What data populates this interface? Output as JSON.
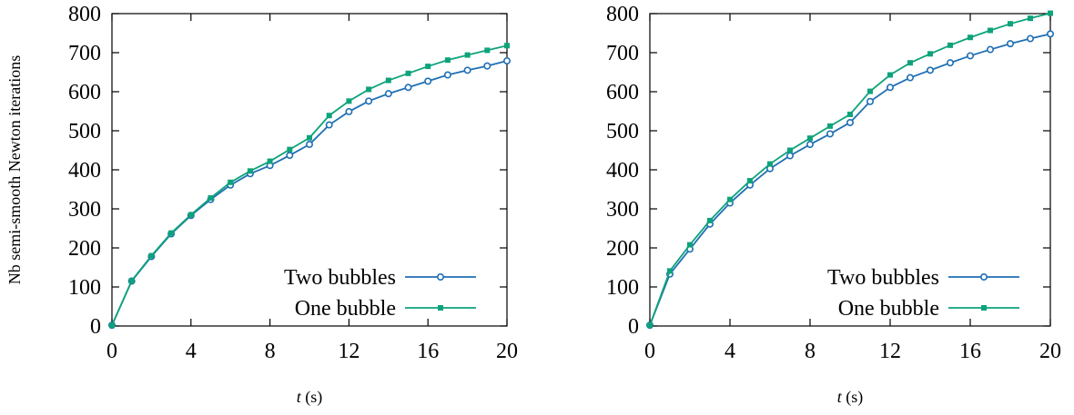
{
  "chart_data": [
    {
      "type": "line",
      "title": "",
      "xlabel": "t (s)",
      "xlabel_italic": "t",
      "xlabel_unit": " (s)",
      "ylabel": "Nb semi-smooth Newton iterations",
      "xlim": [
        0,
        20
      ],
      "ylim": [
        0,
        800
      ],
      "xticks": [
        0,
        4,
        8,
        12,
        16,
        20
      ],
      "yticks": [
        0,
        100,
        200,
        300,
        400,
        500,
        600,
        700,
        800
      ],
      "grid": false,
      "legend_position": "bottom-right",
      "x": [
        0,
        1,
        2,
        3,
        4,
        5,
        6,
        7,
        8,
        9,
        10,
        11,
        12,
        13,
        14,
        15,
        16,
        17,
        18,
        19,
        20
      ],
      "series": [
        {
          "name": "Two bubbles",
          "color": "#1f6fb4",
          "marker": "circle",
          "values": [
            2,
            115,
            178,
            236,
            283,
            324,
            361,
            390,
            411,
            437,
            465,
            515,
            549,
            576,
            595,
            611,
            627,
            643,
            655,
            666,
            679
          ]
        },
        {
          "name": "One bubble",
          "color": "#0ea37a",
          "marker": "square",
          "values": [
            2,
            116,
            180,
            238,
            285,
            328,
            368,
            397,
            422,
            452,
            482,
            539,
            576,
            606,
            629,
            647,
            665,
            681,
            694,
            706,
            718
          ]
        }
      ]
    },
    {
      "type": "line",
      "title": "",
      "xlabel": "t (s)",
      "xlabel_italic": "t",
      "xlabel_unit": " (s)",
      "ylabel": "",
      "xlim": [
        0,
        20
      ],
      "ylim": [
        0,
        800
      ],
      "xticks": [
        0,
        4,
        8,
        12,
        16,
        20
      ],
      "yticks": [
        0,
        100,
        200,
        300,
        400,
        500,
        600,
        700,
        800
      ],
      "grid": false,
      "legend_position": "bottom-right",
      "x": [
        0,
        1,
        2,
        3,
        4,
        5,
        6,
        7,
        8,
        9,
        10,
        11,
        12,
        13,
        14,
        15,
        16,
        17,
        18,
        19,
        20
      ],
      "series": [
        {
          "name": "Two bubbles",
          "color": "#1f6fb4",
          "marker": "circle",
          "values": [
            2,
            133,
            197,
            261,
            315,
            361,
            403,
            436,
            465,
            492,
            521,
            575,
            611,
            636,
            655,
            674,
            692,
            708,
            723,
            736,
            748
          ]
        },
        {
          "name": "One bubble",
          "color": "#0ea37a",
          "marker": "square",
          "values": [
            2,
            141,
            208,
            270,
            324,
            372,
            415,
            450,
            481,
            512,
            542,
            601,
            643,
            674,
            697,
            719,
            739,
            757,
            774,
            788,
            801
          ]
        }
      ]
    }
  ]
}
